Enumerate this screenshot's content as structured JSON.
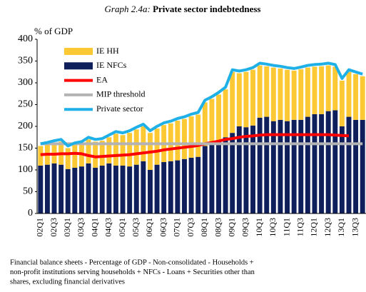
{
  "chart_data": {
    "type": "bar",
    "title_prefix": "Graph 2.4a:",
    "title": "Private sector indebtedness",
    "y_label": "% of GDP",
    "note": [
      "Financial balance sheets - Percentage of GDP - Non-consolidated - Households +",
      "non-profit institutions serving households + NFCs - Loans + Securities other than",
      "shares, excluding financial derivatives"
    ],
    "categories": [
      "02Q1",
      null,
      "02Q3",
      null,
      "03Q1",
      null,
      "03Q3",
      null,
      "04Q1",
      null,
      "04Q3",
      null,
      "05Q1",
      null,
      "05Q3",
      null,
      "06Q1",
      null,
      "06Q3",
      null,
      "07Q1",
      null,
      "07Q3",
      null,
      "08Q1",
      null,
      "08Q3",
      null,
      "09Q1",
      null,
      "09Q3",
      null,
      "10Q1",
      null,
      "10Q3",
      null,
      "11Q1",
      null,
      "11Q3",
      null,
      "12Q1",
      null,
      "12Q3",
      null,
      "13Q1",
      null,
      "13Q3",
      null
    ],
    "ylim": [
      0,
      400
    ],
    "yticks": [
      0,
      50,
      100,
      150,
      200,
      250,
      300,
      350,
      400
    ],
    "stacked": true,
    "series": [
      {
        "name": "IE HH",
        "type": "bar",
        "color": "#fcc934",
        "values": [
          45,
          46,
          47,
          53,
          48,
          52,
          52,
          55,
          60,
          57,
          60,
          73,
          70,
          77,
          81,
          80,
          85,
          83,
          85,
          87,
          91,
          92,
          95,
          97,
          100,
          103,
          108,
          110,
          140,
          122,
          127,
          128,
          120,
          116,
          123,
          118,
          118,
          113,
          116,
          113,
          109,
          110,
          105,
          100,
          105,
          103,
          105,
          100
        ]
      },
      {
        "name": "IE NFCs",
        "type": "bar",
        "color": "#0e1f5b",
        "values": [
          110,
          112,
          115,
          112,
          102,
          105,
          108,
          115,
          105,
          110,
          115,
          110,
          110,
          108,
          112,
          120,
          100,
          112,
          118,
          120,
          122,
          125,
          128,
          130,
          155,
          160,
          165,
          175,
          185,
          200,
          198,
          202,
          220,
          222,
          212,
          215,
          212,
          215,
          215,
          222,
          228,
          228,
          235,
          237,
          200,
          222,
          215,
          215
        ]
      },
      {
        "name": "EA",
        "type": "line",
        "color": "#ff0000",
        "values": [
          135,
          136,
          136,
          137,
          137,
          138,
          137,
          133,
          130,
          131,
          132,
          133,
          134,
          135,
          137,
          139,
          141,
          143,
          146,
          148,
          150,
          152,
          154,
          156,
          160,
          163,
          166,
          170,
          172,
          175,
          177,
          178,
          180,
          181,
          181,
          181,
          181,
          181,
          181,
          181,
          181,
          181,
          181,
          180,
          179,
          178,
          null,
          null
        ]
      },
      {
        "name": "MIP threshold",
        "type": "line",
        "color": "#b3b3b3",
        "values": [
          160,
          160,
          160,
          160,
          160,
          160,
          160,
          160,
          160,
          160,
          160,
          160,
          160,
          160,
          160,
          160,
          160,
          160,
          160,
          160,
          160,
          160,
          160,
          160,
          160,
          160,
          160,
          160,
          160,
          160,
          160,
          160,
          160,
          160,
          160,
          160,
          160,
          160,
          160,
          160,
          160,
          160,
          160,
          160,
          160,
          160,
          160,
          160
        ]
      },
      {
        "name": "Private sector",
        "type": "line",
        "color": "#20b0e8",
        "values": [
          160,
          163,
          167,
          170,
          155,
          162,
          165,
          175,
          170,
          172,
          180,
          188,
          185,
          190,
          198,
          205,
          190,
          200,
          208,
          212,
          218,
          222,
          228,
          232,
          260,
          268,
          278,
          290,
          330,
          327,
          330,
          335,
          345,
          343,
          340,
          338,
          335,
          333,
          336,
          340,
          342,
          343,
          345,
          342,
          310,
          330,
          325,
          320
        ]
      }
    ]
  }
}
